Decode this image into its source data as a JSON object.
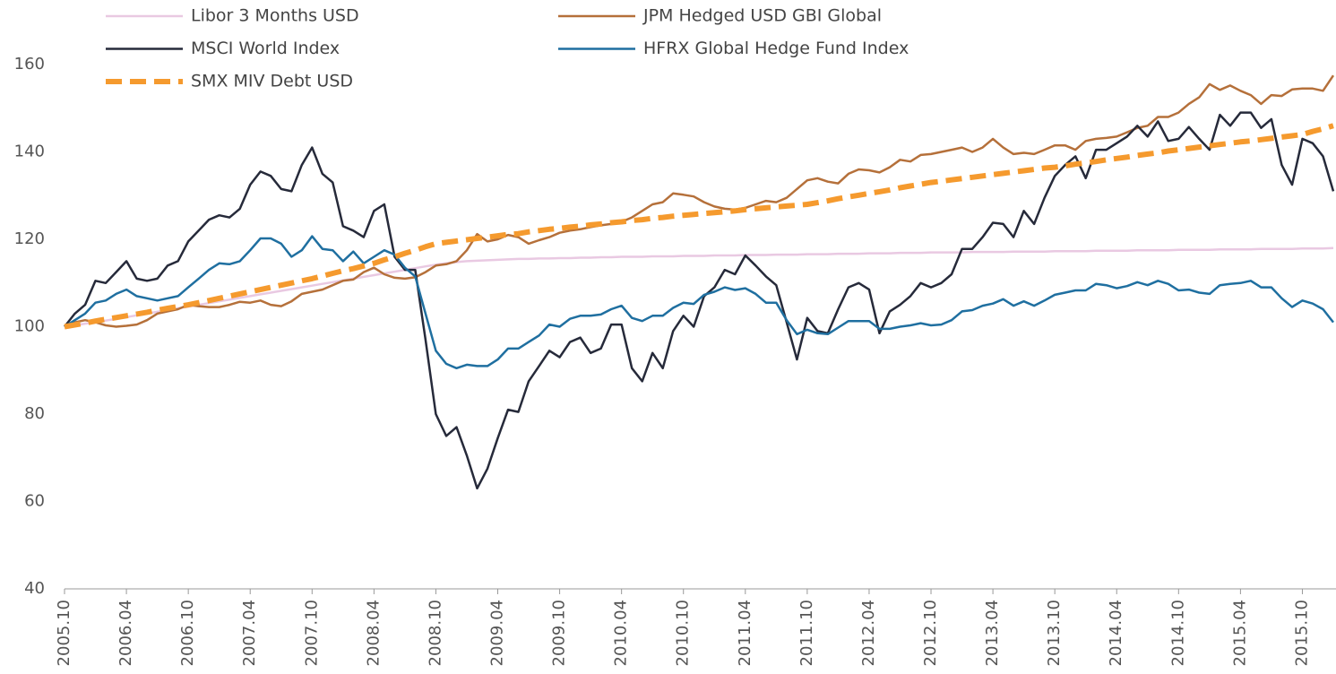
{
  "chart_data": {
    "type": "line",
    "categories": [
      "2005.10",
      null,
      null,
      null,
      null,
      null,
      "2006.04",
      null,
      null,
      null,
      null,
      null,
      "2006.10",
      null,
      null,
      null,
      null,
      null,
      "2007.04",
      null,
      null,
      null,
      null,
      null,
      "2007.10",
      null,
      null,
      null,
      null,
      null,
      "2008.04",
      null,
      null,
      null,
      null,
      null,
      "2008.10",
      null,
      null,
      null,
      null,
      null,
      "2009.04",
      null,
      null,
      null,
      null,
      null,
      "2009.10",
      null,
      null,
      null,
      null,
      null,
      "2010.04",
      null,
      null,
      null,
      null,
      null,
      "2010.10",
      null,
      null,
      null,
      null,
      null,
      "2011.04",
      null,
      null,
      null,
      null,
      null,
      "2011.10",
      null,
      null,
      null,
      null,
      null,
      "2012.04",
      null,
      null,
      null,
      null,
      null,
      "2012.10",
      null,
      null,
      null,
      null,
      null,
      "2013.04",
      null,
      null,
      null,
      null,
      null,
      "2013.10",
      null,
      null,
      null,
      null,
      null,
      "2014.04",
      null,
      null,
      null,
      null,
      null,
      "2014.10",
      null,
      null,
      null,
      null,
      null,
      "2015.04",
      null,
      null,
      null,
      null,
      null,
      "2015.10",
      null,
      null,
      null
    ],
    "ylim": [
      40,
      160
    ],
    "yticks": [
      40,
      60,
      80,
      100,
      120,
      140,
      160
    ],
    "grid": false,
    "legend": "top",
    "series": [
      {
        "name": "Libor 3 Months USD",
        "color": "#e9c9e2",
        "dashed": false,
        "values": [
          100,
          100.3,
          100.7,
          101,
          101.4,
          101.8,
          102.2,
          102.6,
          103,
          103.4,
          103.8,
          104.2,
          104.6,
          105,
          105.4,
          105.8,
          106.2,
          106.6,
          107,
          107.4,
          107.8,
          108.2,
          108.6,
          109,
          109.4,
          109.8,
          110.2,
          110.6,
          111,
          111.4,
          111.8,
          112.2,
          112.6,
          113,
          113.4,
          113.8,
          114.2,
          114.5,
          114.8,
          115,
          115.1,
          115.2,
          115.3,
          115.4,
          115.5,
          115.5,
          115.6,
          115.6,
          115.7,
          115.7,
          115.8,
          115.8,
          115.9,
          115.9,
          116,
          116,
          116,
          116.1,
          116.1,
          116.1,
          116.2,
          116.2,
          116.2,
          116.3,
          116.3,
          116.3,
          116.4,
          116.4,
          116.4,
          116.5,
          116.5,
          116.5,
          116.6,
          116.6,
          116.6,
          116.7,
          116.7,
          116.7,
          116.8,
          116.8,
          116.8,
          116.9,
          116.9,
          116.9,
          117,
          117,
          117,
          117,
          117.1,
          117.1,
          117.1,
          117.1,
          117.2,
          117.2,
          117.2,
          117.2,
          117.3,
          117.3,
          117.3,
          117.3,
          117.4,
          117.4,
          117.4,
          117.4,
          117.5,
          117.5,
          117.5,
          117.5,
          117.6,
          117.6,
          117.6,
          117.6,
          117.7,
          117.7,
          117.7,
          117.7,
          117.8,
          117.8,
          117.8,
          117.8,
          117.9,
          117.9,
          117.9,
          118
        ]
      },
      {
        "name": "JPM Hedged USD GBI Global",
        "color": "#b5703a",
        "dashed": false,
        "values": [
          100,
          101,
          101.5,
          101,
          100.3,
          100,
          100.2,
          100.5,
          101.5,
          103,
          103.5,
          104,
          105,
          104.7,
          104.5,
          104.5,
          105,
          105.7,
          105.5,
          106,
          105,
          104.7,
          105.8,
          107.5,
          108,
          108.5,
          109.5,
          110.5,
          110.8,
          112.5,
          113.5,
          112,
          111.2,
          111,
          111.3,
          112.5,
          114,
          114.3,
          115,
          117.5,
          121.2,
          119.5,
          120,
          121,
          120.5,
          119,
          119.8,
          120.5,
          121.5,
          122,
          122.3,
          122.8,
          123.2,
          123.5,
          124,
          125,
          126.5,
          128,
          128.5,
          130.5,
          130.2,
          129.8,
          128.5,
          127.5,
          127,
          126.8,
          127.2,
          128,
          128.8,
          128.5,
          129.5,
          131.5,
          133.5,
          134,
          133.2,
          132.8,
          135,
          136,
          135.8,
          135.3,
          136.5,
          138.2,
          137.8,
          139.3,
          139.5,
          140,
          140.5,
          141,
          140,
          141,
          143,
          141,
          139.5,
          139.8,
          139.5,
          140.5,
          141.5,
          141.5,
          140.5,
          142.5,
          143,
          143.2,
          143.5,
          144.5,
          145.5,
          146,
          148,
          148,
          149,
          151,
          152.5,
          155.5,
          154.2,
          155.2,
          154,
          153,
          151,
          153,
          152.8,
          154.3,
          154.5,
          154.5,
          154,
          157.5
        ]
      },
      {
        "name": "MSCI World Index",
        "color": "#262a3a",
        "dashed": false,
        "values": [
          100,
          103,
          105,
          110.5,
          110,
          112.5,
          115,
          111,
          110.5,
          111,
          114,
          115,
          119.5,
          122,
          124.5,
          125.5,
          125,
          127,
          132.5,
          135.5,
          134.5,
          131.5,
          131,
          137,
          141,
          135,
          133,
          123,
          122,
          120.5,
          126.5,
          128,
          116,
          113,
          113,
          97,
          80,
          75,
          77,
          70.5,
          63,
          67.5,
          74.5,
          81,
          80.5,
          87.5,
          91,
          94.5,
          93,
          96.5,
          97.5,
          94,
          95,
          100.5,
          100.5,
          90.5,
          87.5,
          94,
          90.5,
          99,
          102.5,
          100,
          107,
          109,
          113,
          112,
          116.3,
          114,
          111.5,
          109.5,
          101,
          92.5,
          102,
          99,
          98.5,
          104,
          109,
          110,
          108.5,
          98.5,
          103.5,
          105,
          107,
          110,
          109,
          110,
          112,
          117.8,
          117.8,
          120.5,
          123.8,
          123.5,
          120.5,
          126.5,
          123.5,
          129.5,
          134.5,
          137,
          139,
          134,
          140.5,
          140.5,
          142,
          143.5,
          146,
          143.5,
          147,
          142.5,
          143,
          145.7,
          143,
          140.5,
          148.5,
          146,
          149,
          149,
          145.5,
          147.5,
          137,
          132.5,
          143,
          142,
          139,
          131
        ]
      },
      {
        "name": "HFRX Global Hedge Fund Index",
        "color": "#1f6fa0",
        "dashed": false,
        "values": [
          100,
          101.5,
          103,
          105.5,
          106,
          107.5,
          108.5,
          107,
          106.5,
          106,
          106.5,
          107,
          109,
          111,
          113,
          114.5,
          114.3,
          115,
          117.5,
          120.2,
          120.2,
          119,
          116,
          117.5,
          120.7,
          117.8,
          117.5,
          115,
          117.2,
          114.5,
          116,
          117.5,
          116.5,
          113.5,
          111.5,
          103,
          94.5,
          91.5,
          90.5,
          91.3,
          91,
          91,
          92.5,
          95,
          95,
          96.5,
          98,
          100.5,
          100,
          101.8,
          102.5,
          102.5,
          102.8,
          104,
          104.8,
          102,
          101.3,
          102.5,
          102.5,
          104.3,
          105.5,
          105.2,
          107.3,
          108,
          109,
          108.4,
          108.8,
          107.5,
          105.5,
          105.5,
          101.5,
          98.3,
          99.3,
          98.5,
          98.3,
          99.8,
          101.3,
          101.3,
          101.3,
          99.5,
          99.5,
          100,
          100.3,
          100.8,
          100.3,
          100.5,
          101.5,
          103.5,
          103.8,
          104.8,
          105.3,
          106.3,
          104.8,
          105.8,
          104.8,
          106,
          107.3,
          107.8,
          108.3,
          108.3,
          109.8,
          109.5,
          108.8,
          109.3,
          110.2,
          109.5,
          110.5,
          109.8,
          108.3,
          108.5,
          107.8,
          107.5,
          109.5,
          109.8,
          110,
          110.5,
          109,
          109,
          106.5,
          104.5,
          106,
          105.3,
          104,
          101
        ]
      },
      {
        "name": "SMX MIV Debt USD",
        "color": "#f59a2e",
        "dashed": true,
        "values": [
          100,
          100.4,
          100.8,
          101.3,
          101.7,
          102.1,
          102.5,
          102.9,
          103.3,
          103.8,
          104.2,
          104.6,
          105,
          105.5,
          106,
          106.5,
          107,
          107.5,
          108,
          108.5,
          109,
          109.5,
          110,
          110.5,
          111,
          111.6,
          112.2,
          112.8,
          113.3,
          113.9,
          114.5,
          115.3,
          116,
          116.8,
          117.5,
          118.3,
          119,
          119.3,
          119.6,
          119.9,
          120.2,
          120.5,
          120.8,
          121.1,
          121.3,
          121.7,
          122,
          122.3,
          122.5,
          122.8,
          123,
          123.3,
          123.5,
          123.8,
          124,
          124.3,
          124.5,
          124.8,
          125,
          125.3,
          125.5,
          125.7,
          125.9,
          126.1,
          126.3,
          126.5,
          126.8,
          127,
          127.2,
          127.4,
          127.6,
          127.8,
          128,
          128.4,
          128.8,
          129.3,
          129.7,
          130.1,
          130.5,
          130.9,
          131.3,
          131.8,
          132.2,
          132.6,
          133,
          133.3,
          133.6,
          133.9,
          134.2,
          134.5,
          134.8,
          135.1,
          135.4,
          135.7,
          136,
          136.3,
          136.5,
          136.8,
          137.2,
          137.5,
          137.8,
          138.2,
          138.5,
          138.8,
          139.2,
          139.5,
          139.8,
          140.2,
          140.5,
          140.8,
          141.1,
          141.4,
          141.7,
          142,
          142.3,
          142.5,
          142.8,
          143.1,
          143.4,
          143.7,
          144,
          144.7,
          145.3,
          146
        ]
      }
    ]
  }
}
